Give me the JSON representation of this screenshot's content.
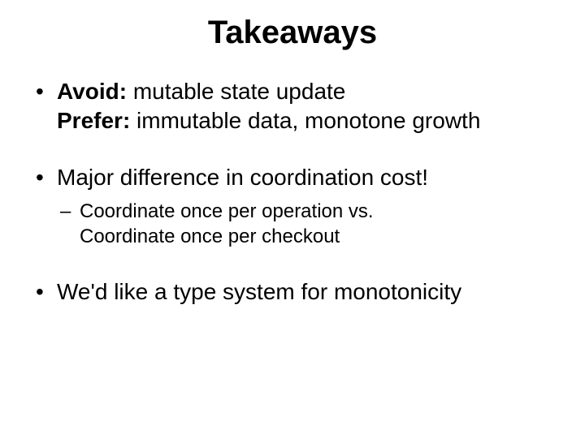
{
  "title": "Takeaways",
  "title_fontsize": 40,
  "body_fontsize": 28,
  "sub_fontsize": 24,
  "text_color": "#000000",
  "background_color": "#ffffff",
  "bullets": [
    {
      "bold1": "Avoid:",
      "text1": " mutable state update",
      "bold2": "Prefer:",
      "text2": " immutable data, monotone growth"
    },
    {
      "text": "Major difference in coordination cost!",
      "sub_line1": "Coordinate once per operation vs.",
      "sub_line2": "Coordinate once per checkout"
    },
    {
      "text": "We'd like a type system for monotonicity"
    }
  ]
}
